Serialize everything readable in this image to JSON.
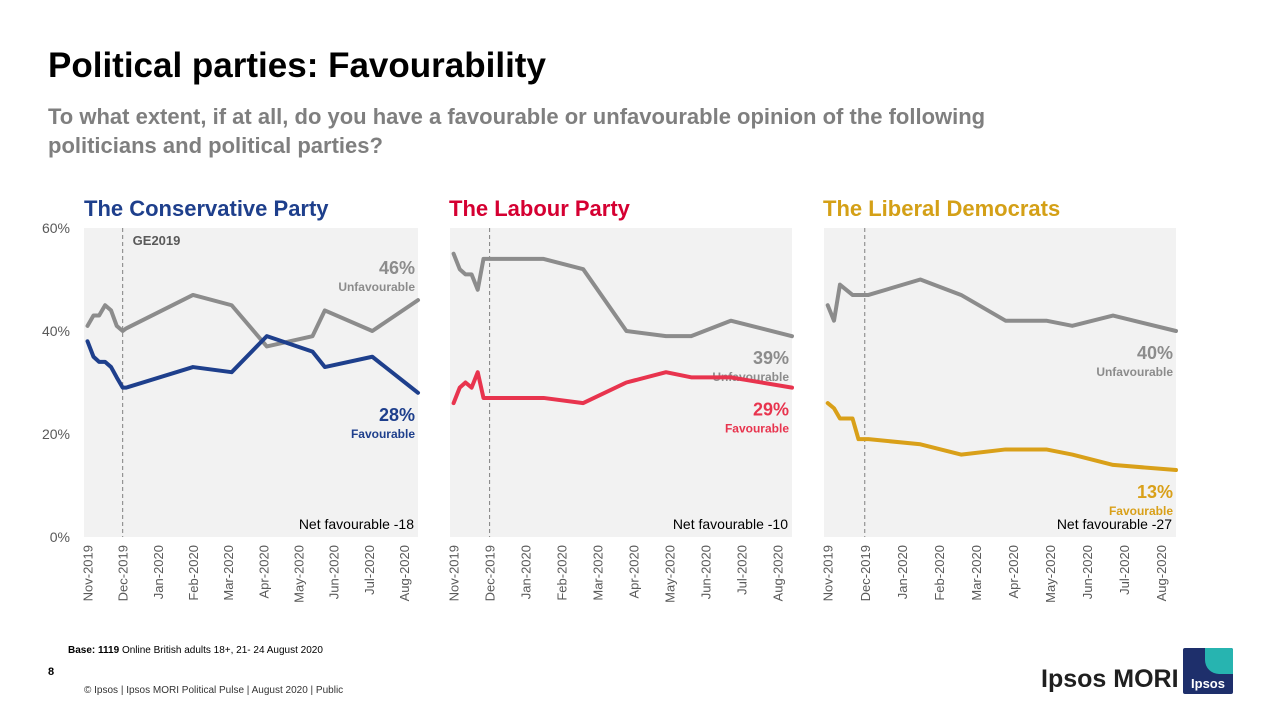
{
  "header": {
    "title": "Political parties: Favourability",
    "subtitle": "To what extent, if at all, do you have a favourable or unfavourable opinion of the following politicians and political parties?"
  },
  "footer": {
    "base_bold": "Base: 1119",
    "base_rest": " Online British adults 18+, 21- 24 August 2020",
    "page_number": "8",
    "copyright": "© Ipsos | Ipsos MORI Political Pulse | August 2020 | Public",
    "brand": "Ipsos MORI",
    "logo_text": "Ipsos"
  },
  "colors": {
    "unfavourable": "#8c8c8c",
    "plot_bg": "#f2f2f2"
  },
  "chart_data": [
    {
      "type": "line",
      "title": "The Conservative Party",
      "title_color": "#1e3f8c",
      "ylim": [
        0,
        60
      ],
      "yticks": [
        "0%",
        "20%",
        "40%",
        "60%"
      ],
      "xticks": [
        "Nov-2019",
        "Dec-2019",
        "Jan-2020",
        "Feb-2020",
        "Mar-2020",
        "Apr-2020",
        "May-2020",
        "Jun-2020",
        "Jul-2020",
        "Aug-2020"
      ],
      "x": [
        0,
        0.17,
        0.33,
        0.5,
        0.67,
        0.83,
        1.0,
        1.1,
        3.0,
        4.1,
        5.1,
        6.4,
        6.75,
        8.1,
        9.4
      ],
      "event": {
        "label": "GE2019",
        "x": 1.0
      },
      "series": [
        {
          "name": "Unfavourable",
          "color": "#8c8c8c",
          "values": [
            41,
            43,
            43,
            45,
            44,
            41,
            40,
            40.5,
            47,
            45,
            37,
            39,
            44,
            40,
            46
          ],
          "end_label": "46%",
          "end_caption": "Unfavourable"
        },
        {
          "name": "Favourable",
          "color": "#1e3f8c",
          "values": [
            38,
            35,
            34,
            34,
            33,
            31,
            29,
            29,
            33,
            32,
            39,
            36,
            33,
            35,
            28
          ],
          "end_label": "28%",
          "end_caption": "Favourable"
        }
      ],
      "net_label": "Net favourable -18"
    },
    {
      "type": "line",
      "title": "The Labour Party",
      "title_color": "#d50032",
      "ylim": [
        0,
        60
      ],
      "xticks": [
        "Nov-2019",
        "Dec-2019",
        "Jan-2020",
        "Feb-2020",
        "Mar-2020",
        "Apr-2020",
        "May-2020",
        "Jun-2020",
        "Jul-2020",
        "Aug-2020"
      ],
      "x": [
        0,
        0.17,
        0.33,
        0.5,
        0.67,
        0.83,
        1.0,
        1.1,
        2.5,
        3.6,
        4.8,
        5.9,
        6.6,
        7.7,
        9.4
      ],
      "event": {
        "label": "",
        "x": 1.0
      },
      "series": [
        {
          "name": "Unfavourable",
          "color": "#8c8c8c",
          "values": [
            55,
            52,
            51,
            51,
            48,
            54,
            54,
            54,
            54,
            52,
            40,
            39,
            39,
            42,
            39
          ],
          "end_label": "39%",
          "end_caption": "Unfavourable"
        },
        {
          "name": "Favourable",
          "color": "#e8344e",
          "values": [
            26,
            29,
            30,
            29,
            32,
            27,
            27,
            27,
            27,
            26,
            30,
            32,
            31,
            31,
            29
          ],
          "end_label": "29%",
          "end_caption": "Favourable"
        }
      ],
      "net_label": "Net favourable -10"
    },
    {
      "type": "line",
      "title": "The Liberal Democrats",
      "title_color": "#d4a017",
      "ylim": [
        0,
        60
      ],
      "xticks": [
        "Nov-2019",
        "Dec-2019",
        "Jan-2020",
        "Feb-2020",
        "Mar-2020",
        "Apr-2020",
        "May-2020",
        "Jun-2020",
        "Jul-2020",
        "Aug-2020"
      ],
      "x": [
        0,
        0.17,
        0.33,
        0.5,
        0.67,
        0.83,
        1.0,
        1.1,
        2.5,
        3.6,
        4.8,
        5.9,
        6.6,
        7.7,
        9.4
      ],
      "event": {
        "label": "",
        "x": 1.0
      },
      "series": [
        {
          "name": "Unfavourable",
          "color": "#8c8c8c",
          "values": [
            45,
            42,
            49,
            48,
            47,
            47,
            47,
            47,
            50,
            47,
            42,
            42,
            41,
            43,
            40
          ],
          "end_label": "40%",
          "end_caption": "Unfavourable"
        },
        {
          "name": "Favourable",
          "color": "#d9a019",
          "values": [
            26,
            25,
            23,
            23,
            23,
            19,
            19,
            19,
            18,
            16,
            17,
            17,
            16,
            14,
            13
          ],
          "end_label": "13%",
          "end_caption": "Favourable"
        }
      ],
      "net_label": "Net favourable -27"
    }
  ]
}
